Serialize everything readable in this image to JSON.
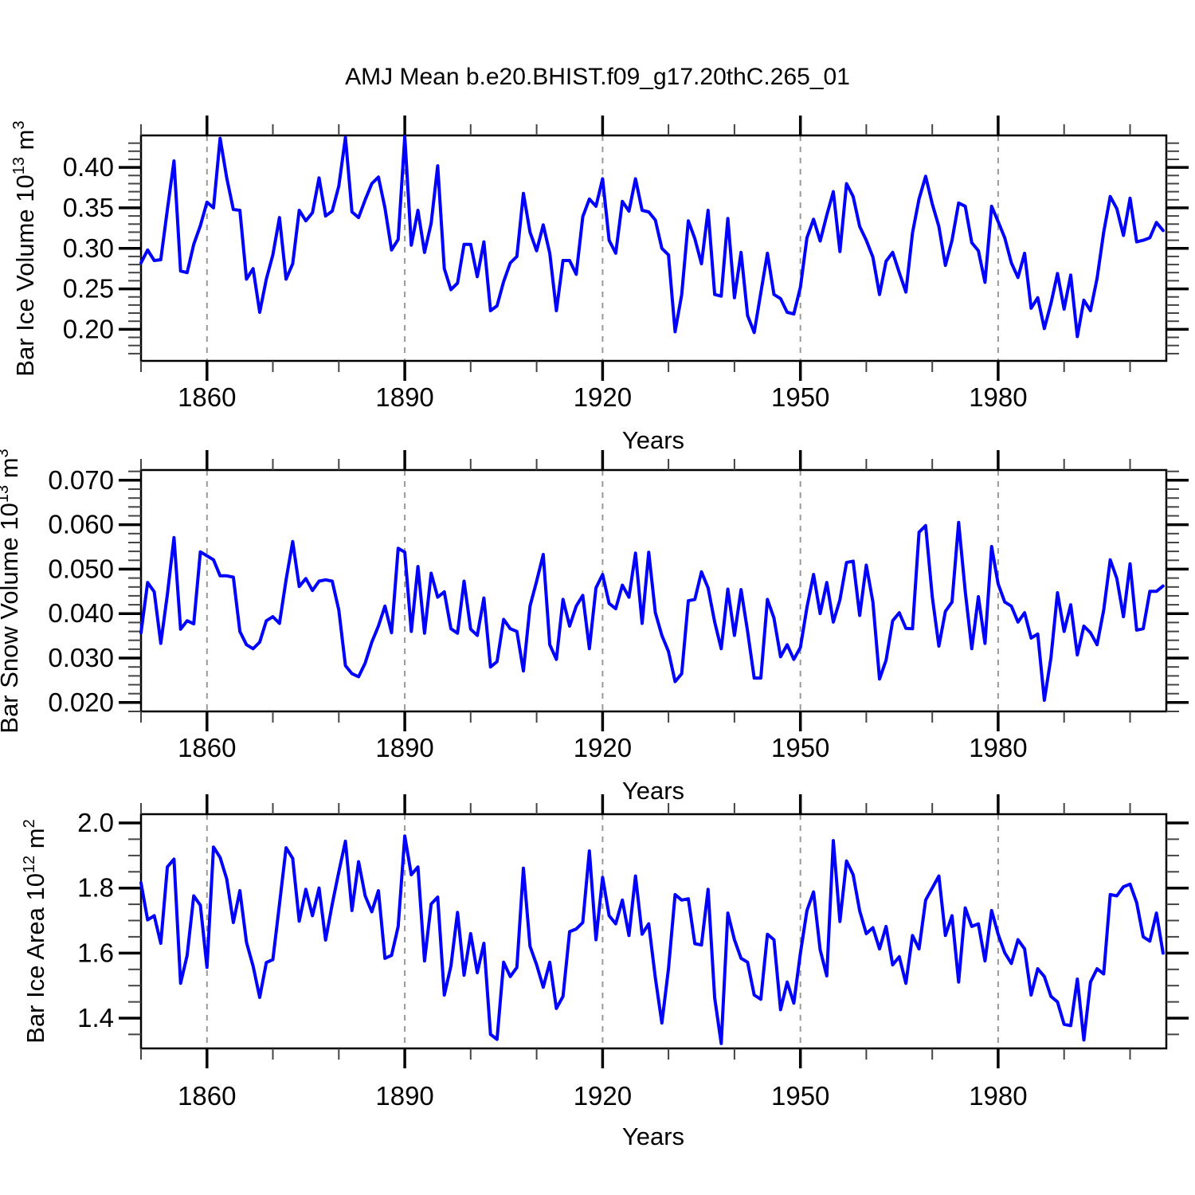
{
  "title": "AMJ Mean b.e20.BHIST.f09_g17.20thC.265_01",
  "xlabel": "Years",
  "colors": {
    "line": "#0000ff",
    "grid": "#999999",
    "axis": "#000000",
    "background": "#ffffff"
  },
  "x_axis": {
    "start_year": 1850,
    "end_year": 2005,
    "major_ticks": [
      1860,
      1890,
      1920,
      1950,
      1980
    ],
    "tick_labels": [
      "1860",
      "1890",
      "1920",
      "1950",
      "1980"
    ],
    "minor_step": 10,
    "grid": "vertical-dashed-at-major-ticks"
  },
  "chart_data": [
    {
      "type": "line",
      "name": "bar-ice-volume",
      "title": "",
      "xlabel": "Years",
      "ylabel": {
        "base": "Bar Ice Volume 10",
        "sup": "13",
        "unit": " m",
        "unit_sup": "3"
      },
      "x_range": [
        1850,
        2005.5
      ],
      "ylim": [
        0.161,
        0.4395
      ],
      "y_major_ticks": [
        0.2,
        0.25,
        0.3,
        0.35,
        0.4
      ],
      "y_tick_labels": [
        "0.20",
        "0.25",
        "0.30",
        "0.35",
        "0.40"
      ],
      "y_minor_step": 0.01,
      "legend": "none",
      "x_start_year": 1850,
      "values": [
        0.282,
        0.298,
        0.285,
        0.286,
        0.348,
        0.408,
        0.272,
        0.27,
        0.305,
        0.328,
        0.357,
        0.35,
        0.436,
        0.387,
        0.348,
        0.347,
        0.262,
        0.275,
        0.221,
        0.262,
        0.292,
        0.338,
        0.262,
        0.281,
        0.347,
        0.334,
        0.344,
        0.387,
        0.34,
        0.346,
        0.377,
        0.437,
        0.345,
        0.338,
        0.36,
        0.38,
        0.388,
        0.35,
        0.298,
        0.311,
        0.438,
        0.304,
        0.347,
        0.295,
        0.331,
        0.402,
        0.275,
        0.249,
        0.257,
        0.305,
        0.305,
        0.265,
        0.308,
        0.223,
        0.229,
        0.259,
        0.282,
        0.29,
        0.368,
        0.32,
        0.297,
        0.329,
        0.294,
        0.223,
        0.285,
        0.285,
        0.268,
        0.339,
        0.361,
        0.352,
        0.386,
        0.31,
        0.294,
        0.358,
        0.346,
        0.386,
        0.347,
        0.345,
        0.335,
        0.3,
        0.292,
        0.197,
        0.243,
        0.334,
        0.312,
        0.281,
        0.347,
        0.243,
        0.241,
        0.337,
        0.239,
        0.295,
        0.217,
        0.196,
        0.245,
        0.294,
        0.243,
        0.238,
        0.221,
        0.219,
        0.252,
        0.313,
        0.336,
        0.309,
        0.341,
        0.37,
        0.296,
        0.38,
        0.364,
        0.327,
        0.31,
        0.289,
        0.243,
        0.284,
        0.295,
        0.27,
        0.246,
        0.319,
        0.361,
        0.389,
        0.355,
        0.327,
        0.279,
        0.31,
        0.356,
        0.352,
        0.307,
        0.297,
        0.258,
        0.352,
        0.333,
        0.313,
        0.282,
        0.264,
        0.294,
        0.226,
        0.239,
        0.201,
        0.232,
        0.269,
        0.225,
        0.267,
        0.191,
        0.236,
        0.223,
        0.263,
        0.32,
        0.364,
        0.349,
        0.316,
        0.362,
        0.308,
        0.31,
        0.313,
        0.332,
        0.322
      ]
    },
    {
      "type": "line",
      "name": "bar-snow-volume",
      "title": "",
      "xlabel": "Years",
      "ylabel": {
        "base": "Bar Snow Volume 10",
        "sup": "13",
        "unit": " m",
        "unit_sup": "3"
      },
      "x_range": [
        1850,
        2005.5
      ],
      "ylim": [
        0.018,
        0.0723
      ],
      "y_major_ticks": [
        0.02,
        0.03,
        0.04,
        0.05,
        0.06,
        0.07
      ],
      "y_tick_labels": [
        "0.020",
        "0.030",
        "0.040",
        "0.050",
        "0.060",
        "0.070"
      ],
      "y_minor_step": 0.002,
      "legend": "none",
      "x_start_year": 1850,
      "values": [
        0.0357,
        0.047,
        0.0449,
        0.0333,
        0.0443,
        0.0571,
        0.0365,
        0.0384,
        0.0377,
        0.0539,
        0.053,
        0.0521,
        0.0485,
        0.0485,
        0.0482,
        0.036,
        0.033,
        0.0321,
        0.0336,
        0.0384,
        0.0393,
        0.0378,
        0.0476,
        0.0562,
        0.0461,
        0.0479,
        0.0452,
        0.0473,
        0.0476,
        0.0473,
        0.0408,
        0.0283,
        0.0265,
        0.0258,
        0.0289,
        0.0336,
        0.0372,
        0.0417,
        0.0357,
        0.0547,
        0.0538,
        0.036,
        0.0506,
        0.0356,
        0.0491,
        0.0437,
        0.0449,
        0.0366,
        0.0356,
        0.0473,
        0.0365,
        0.0351,
        0.0435,
        0.028,
        0.0292,
        0.0387,
        0.0366,
        0.036,
        0.0271,
        0.0417,
        0.0473,
        0.0533,
        0.033,
        0.0297,
        0.0432,
        0.0372,
        0.0417,
        0.0441,
        0.0321,
        0.0458,
        0.0488,
        0.0423,
        0.0411,
        0.0464,
        0.0437,
        0.0536,
        0.0378,
        0.0538,
        0.0402,
        0.0351,
        0.0315,
        0.0247,
        0.0265,
        0.0429,
        0.0432,
        0.0494,
        0.0458,
        0.0381,
        0.0321,
        0.0455,
        0.0351,
        0.0454,
        0.036,
        0.0255,
        0.0255,
        0.0432,
        0.039,
        0.0303,
        0.033,
        0.0297,
        0.0324,
        0.0414,
        0.0488,
        0.04,
        0.047,
        0.0381,
        0.0431,
        0.0515,
        0.0518,
        0.0396,
        0.0509,
        0.0426,
        0.0253,
        0.0295,
        0.0384,
        0.0402,
        0.0367,
        0.0366,
        0.0583,
        0.0598,
        0.0438,
        0.0327,
        0.0405,
        0.0426,
        0.0605,
        0.045,
        0.0321,
        0.0438,
        0.0333,
        0.0551,
        0.0467,
        0.0426,
        0.0417,
        0.0381,
        0.0402,
        0.0345,
        0.0354,
        0.0205,
        0.0301,
        0.0447,
        0.036,
        0.042,
        0.0307,
        0.0372,
        0.0357,
        0.033,
        0.0408,
        0.0521,
        0.0479,
        0.0393,
        0.0512,
        0.0363,
        0.0366,
        0.045,
        0.045,
        0.0462
      ]
    },
    {
      "type": "line",
      "name": "bar-ice-area",
      "title": "",
      "xlabel": "Years",
      "ylabel": {
        "base": "Bar Ice Area 10",
        "sup": "12",
        "unit": " m",
        "unit_sup": "2"
      },
      "x_range": [
        1850,
        2005.5
      ],
      "ylim": [
        1.307,
        2.027
      ],
      "y_major_ticks": [
        1.4,
        1.6,
        1.8,
        2.0
      ],
      "y_tick_labels": [
        "1.4",
        "1.6",
        "1.8",
        "2.0"
      ],
      "y_minor_step": 0.05,
      "legend": "none",
      "x_start_year": 1850,
      "values": [
        1.816,
        1.702,
        1.715,
        1.63,
        1.865,
        1.889,
        1.507,
        1.593,
        1.776,
        1.747,
        1.556,
        1.926,
        1.894,
        1.828,
        1.694,
        1.792,
        1.633,
        1.56,
        1.464,
        1.571,
        1.58,
        1.75,
        1.924,
        1.891,
        1.698,
        1.796,
        1.715,
        1.8,
        1.64,
        1.75,
        1.85,
        1.944,
        1.731,
        1.881,
        1.776,
        1.727,
        1.792,
        1.584,
        1.593,
        1.682,
        1.96,
        1.841,
        1.865,
        1.576,
        1.751,
        1.772,
        1.471,
        1.56,
        1.725,
        1.532,
        1.66,
        1.54,
        1.63,
        1.35,
        1.335,
        1.572,
        1.528,
        1.556,
        1.861,
        1.621,
        1.564,
        1.495,
        1.572,
        1.43,
        1.467,
        1.666,
        1.674,
        1.694,
        1.914,
        1.641,
        1.833,
        1.715,
        1.69,
        1.763,
        1.654,
        1.837,
        1.658,
        1.69,
        1.524,
        1.385,
        1.552,
        1.78,
        1.763,
        1.767,
        1.629,
        1.625,
        1.796,
        1.462,
        1.322,
        1.723,
        1.641,
        1.584,
        1.572,
        1.471,
        1.458,
        1.658,
        1.641,
        1.426,
        1.511,
        1.446,
        1.6,
        1.731,
        1.788,
        1.61,
        1.53,
        1.946,
        1.697,
        1.883,
        1.841,
        1.73,
        1.66,
        1.678,
        1.613,
        1.682,
        1.564,
        1.589,
        1.507,
        1.654,
        1.613,
        1.763,
        1.8,
        1.837,
        1.654,
        1.715,
        1.511,
        1.739,
        1.682,
        1.69,
        1.576,
        1.731,
        1.658,
        1.601,
        1.568,
        1.641,
        1.613,
        1.471,
        1.552,
        1.528,
        1.467,
        1.45,
        1.381,
        1.377,
        1.52,
        1.333,
        1.511,
        1.552,
        1.536,
        1.78,
        1.776,
        1.804,
        1.812,
        1.755,
        1.65,
        1.637,
        1.723,
        1.6
      ]
    }
  ]
}
